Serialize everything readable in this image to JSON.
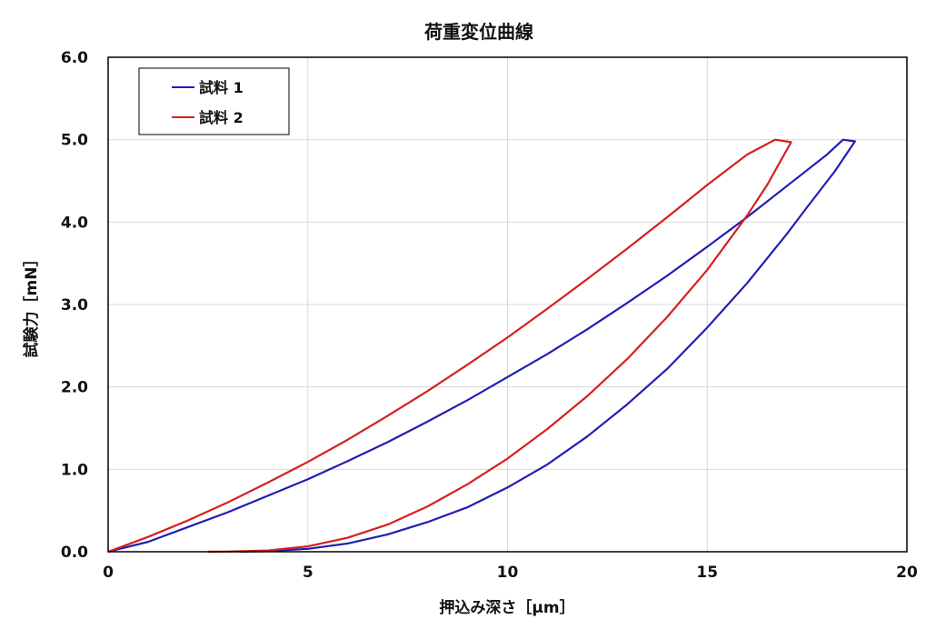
{
  "chart_data": {
    "type": "line",
    "title": "荷重変位曲線",
    "xlabel": "押込み深さ［μm］",
    "ylabel": "試験力［mN］",
    "xlim": [
      0,
      20
    ],
    "ylim": [
      0,
      6
    ],
    "x_ticks": [
      0,
      5,
      10,
      15,
      20
    ],
    "x_tick_labels": [
      "0",
      "5",
      "10",
      "15",
      "20"
    ],
    "y_ticks": [
      0,
      1,
      2,
      3,
      4,
      5,
      6
    ],
    "y_tick_labels": [
      "0.0",
      "1.0",
      "2.0",
      "3.0",
      "4.0",
      "5.0",
      "6.0"
    ],
    "grid": true,
    "legend_position": "top-left",
    "series": [
      {
        "name": "試料 1",
        "color": "#1f1fb4",
        "loading": [
          [
            0,
            0
          ],
          [
            1,
            0.12
          ],
          [
            2,
            0.3
          ],
          [
            3,
            0.48
          ],
          [
            4,
            0.68
          ],
          [
            5,
            0.88
          ],
          [
            6,
            1.1
          ],
          [
            7,
            1.33
          ],
          [
            8,
            1.58
          ],
          [
            9,
            1.84
          ],
          [
            10,
            2.12
          ],
          [
            11,
            2.4
          ],
          [
            12,
            2.7
          ],
          [
            13,
            3.02
          ],
          [
            14,
            3.35
          ],
          [
            15,
            3.7
          ],
          [
            16,
            4.06
          ],
          [
            17,
            4.44
          ],
          [
            18,
            4.82
          ],
          [
            18.4,
            5.0
          ]
        ],
        "hold": [
          [
            18.4,
            5.0
          ],
          [
            18.7,
            4.98
          ]
        ],
        "unloading": [
          [
            18.7,
            4.98
          ],
          [
            18.2,
            4.62
          ],
          [
            17.5,
            4.18
          ],
          [
            17,
            3.86
          ],
          [
            16,
            3.26
          ],
          [
            15,
            2.72
          ],
          [
            14,
            2.22
          ],
          [
            13,
            1.79
          ],
          [
            12,
            1.4
          ],
          [
            11,
            1.06
          ],
          [
            10,
            0.78
          ],
          [
            9,
            0.54
          ],
          [
            8,
            0.36
          ],
          [
            7,
            0.21
          ],
          [
            6,
            0.1
          ],
          [
            5,
            0.035
          ],
          [
            4,
            0.008
          ],
          [
            3.3,
            0
          ]
        ]
      },
      {
        "name": "試料 2",
        "color": "#d42020",
        "loading": [
          [
            0,
            0
          ],
          [
            1,
            0.18
          ],
          [
            2,
            0.38
          ],
          [
            3,
            0.6
          ],
          [
            4,
            0.84
          ],
          [
            5,
            1.09
          ],
          [
            6,
            1.36
          ],
          [
            7,
            1.65
          ],
          [
            8,
            1.95
          ],
          [
            9,
            2.27
          ],
          [
            10,
            2.6
          ],
          [
            11,
            2.95
          ],
          [
            12,
            3.31
          ],
          [
            13,
            3.68
          ],
          [
            14,
            4.06
          ],
          [
            15,
            4.45
          ],
          [
            16,
            4.82
          ],
          [
            16.7,
            5.0
          ]
        ],
        "hold": [
          [
            16.7,
            5.0
          ],
          [
            17.1,
            4.97
          ]
        ],
        "unloading": [
          [
            17.1,
            4.97
          ],
          [
            16.5,
            4.45
          ],
          [
            16,
            4.08
          ],
          [
            15,
            3.42
          ],
          [
            14,
            2.85
          ],
          [
            13,
            2.34
          ],
          [
            12,
            1.89
          ],
          [
            11,
            1.49
          ],
          [
            10,
            1.13
          ],
          [
            9,
            0.82
          ],
          [
            8,
            0.55
          ],
          [
            7,
            0.33
          ],
          [
            6,
            0.17
          ],
          [
            5,
            0.065
          ],
          [
            4,
            0.015
          ],
          [
            3,
            0.002
          ],
          [
            2.5,
            0
          ]
        ]
      }
    ]
  }
}
